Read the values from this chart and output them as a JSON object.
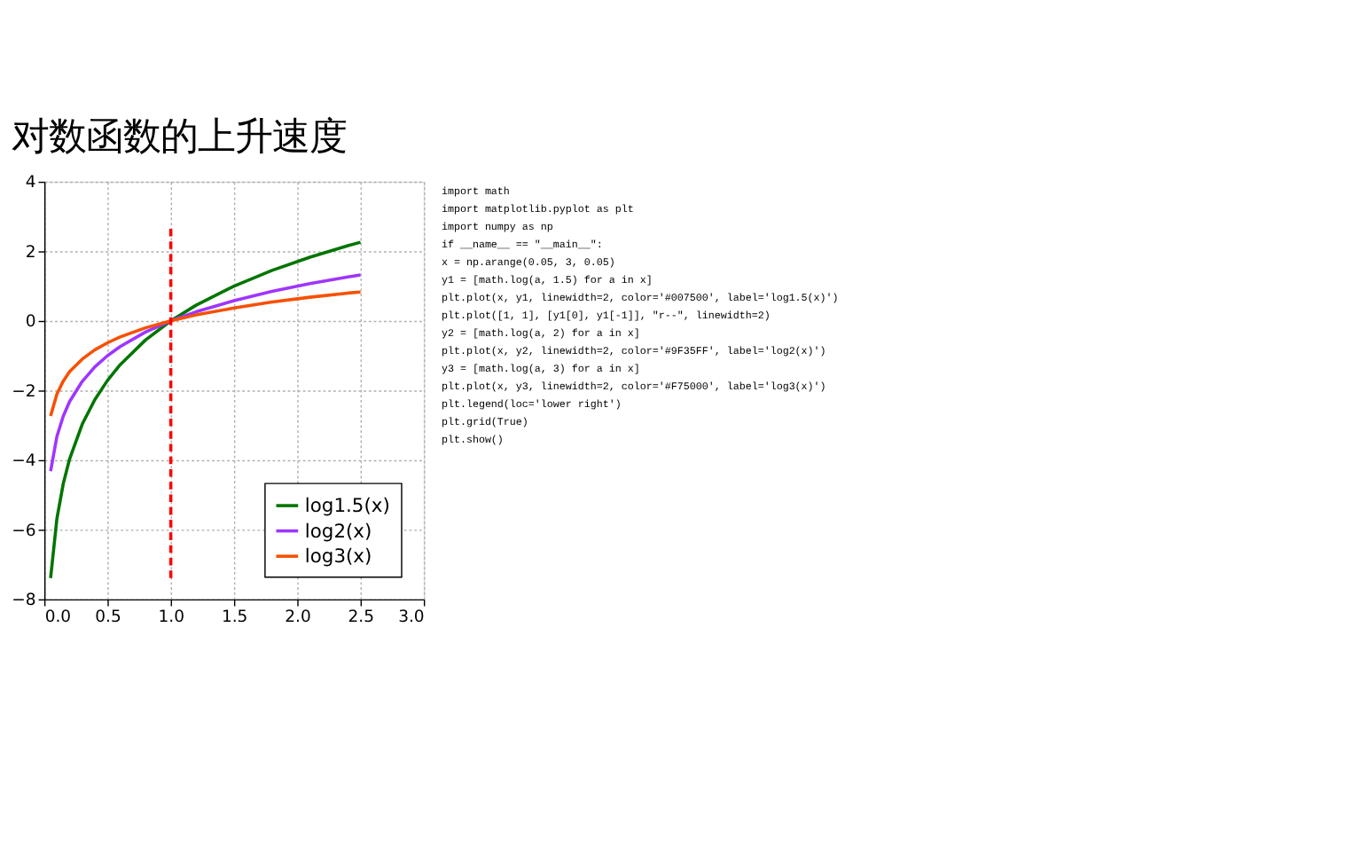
{
  "chart_data": {
    "type": "line",
    "title": "对数函数的上升速度",
    "x": [
      0.05,
      0.1,
      0.15,
      0.2,
      0.3,
      0.4,
      0.5,
      0.6,
      0.8,
      1.0,
      1.2,
      1.5,
      1.8,
      2.1,
      2.4,
      2.5
    ],
    "series": [
      {
        "name": "log1.5(x)",
        "color": "#007500",
        "values": [
          -7.39,
          -5.68,
          -4.68,
          -3.97,
          -2.97,
          -2.26,
          -1.71,
          -1.26,
          -0.55,
          0,
          0.45,
          1.0,
          1.45,
          1.83,
          2.16,
          2.26
        ]
      },
      {
        "name": "log2(x)",
        "color": "#9f35ff",
        "values": [
          -4.32,
          -3.32,
          -2.74,
          -2.32,
          -1.74,
          -1.32,
          -1.0,
          -0.74,
          -0.32,
          0,
          0.26,
          0.58,
          0.85,
          1.07,
          1.26,
          1.32
        ]
      },
      {
        "name": "log3(x)",
        "color": "#f75000",
        "values": [
          -2.73,
          -2.1,
          -1.73,
          -1.46,
          -1.1,
          -0.83,
          -0.63,
          -0.46,
          -0.2,
          0,
          0.17,
          0.37,
          0.54,
          0.68,
          0.8,
          0.83
        ]
      },
      {
        "type": "line",
        "color": "#ff0000",
        "line_style": "dashed",
        "x": [
          1.0,
          1.0
        ],
        "values": [
          -7.39,
          2.67
        ]
      }
    ],
    "xlim": [
      0,
      3
    ],
    "ylim": [
      -8,
      4
    ],
    "xticks": [
      {
        "value": 0,
        "label": "0.0"
      },
      0.5,
      {
        "value": 1,
        "label": "1.0"
      },
      1.5,
      {
        "value": 2,
        "label": "2.0"
      },
      2.5,
      {
        "value": 3,
        "label": "3.0"
      }
    ],
    "yticks": [
      {
        "value": -8,
        "label": "−8"
      },
      {
        "value": -6,
        "label": "−6"
      },
      {
        "value": -4,
        "label": "−4"
      },
      {
        "value": -2,
        "label": "−2"
      },
      0,
      2,
      4
    ],
    "grid": true,
    "legend": "bottom right",
    "line_style": "solid",
    "marker": "none",
    "annotations": [
      "import math",
      "import matplotlib.pyplot as plt",
      "import numpy as np",
      "if __name__ == \"__main__\":",
      "    x = np.arange(0.05, 3, 0.05)",
      "    y1 = [math.log(a, 1.5) for a in x]",
      "    plt.plot(x, y1, linewidth=2, color='#007500', label='log1.5(x)')",
      "    plt.plot([1, 1], [y1[0], y1[-1]], \"r--\", linewidth=2)",
      "    y2 = [math.log(a, 2) for a in x]",
      "    plt.plot(x, y2, linewidth=2, color='#9F35FF', label='log2(x)')",
      "    y3 = [math.log(a, 3) for a in x]",
      "    plt.plot(x, y3, linewidth=2, color='#F75000', label='log3(x)')",
      "    plt.legend(loc='lower right')",
      "    plt.grid(True)",
      "    plt.show()"
    ]
  }
}
